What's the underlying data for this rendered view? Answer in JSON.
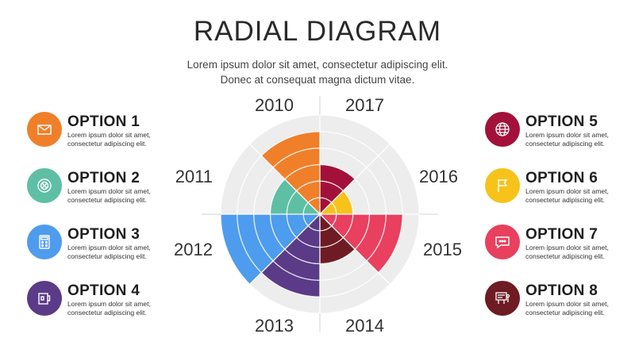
{
  "title": "RADIAL DIAGRAM",
  "subtitle": {
    "line1": "Lorem ipsum dolor sit amet, consectetur adipiscing elit.",
    "line2": "Donec at consequat magna dictum vitae."
  },
  "options": [
    {
      "label": "OPTION 1",
      "desc1": "Lorem ipsum dolor sit amet,",
      "desc2": "consectetur adipiscing elit.",
      "color": "#F07F2A",
      "icon": "envelope-icon"
    },
    {
      "label": "OPTION 2",
      "desc1": "Lorem ipsum dolor sit amet,",
      "desc2": "consectetur adipiscing elit.",
      "color": "#5EBFA5",
      "icon": "target-icon"
    },
    {
      "label": "OPTION 3",
      "desc1": "Lorem ipsum dolor sit amet,",
      "desc2": "consectetur adipiscing elit.",
      "color": "#4E9CEE",
      "icon": "calculator-icon"
    },
    {
      "label": "OPTION 4",
      "desc1": "Lorem ipsum dolor sit amet,",
      "desc2": "consectetur adipiscing elit.",
      "color": "#5B3B87",
      "icon": "mug-icon"
    },
    {
      "label": "OPTION 5",
      "desc1": "Lorem ipsum dolor sit amet,",
      "desc2": "consectetur adipiscing elit.",
      "color": "#A3113A",
      "icon": "globe-icon"
    },
    {
      "label": "OPTION 6",
      "desc1": "Lorem ipsum dolor sit amet,",
      "desc2": "consectetur adipiscing elit.",
      "color": "#F7C21A",
      "icon": "flag-icon"
    },
    {
      "label": "OPTION 7",
      "desc1": "Lorem ipsum dolor sit amet,",
      "desc2": "consectetur adipiscing elit.",
      "color": "#E8405E",
      "icon": "chat-bubble-icon"
    },
    {
      "label": "OPTION 8",
      "desc1": "Lorem ipsum dolor sit amet,",
      "desc2": "consectetur adipiscing elit.",
      "color": "#6E1B24",
      "icon": "presentation-board-icon"
    }
  ],
  "years": [
    "2017",
    "2016",
    "2015",
    "2014",
    "2013",
    "2012",
    "2011",
    "2010"
  ],
  "segments": [
    {
      "option": "OPTION 5",
      "color": "#A3113A",
      "level": 3
    },
    {
      "option": "OPTION 6",
      "color": "#F7C21A",
      "level": 2
    },
    {
      "option": "OPTION 7",
      "color": "#E8405E",
      "level": 5
    },
    {
      "option": "OPTION 8",
      "color": "#6E1B24",
      "level": 3
    },
    {
      "option": "OPTION 4",
      "color": "#5B3B87",
      "level": 5
    },
    {
      "option": "OPTION 3",
      "color": "#4E9CEE",
      "level": 6
    },
    {
      "option": "OPTION 2",
      "color": "#5EBFA5",
      "level": 3
    },
    {
      "option": "OPTION 1",
      "color": "#F07F2A",
      "level": 5
    }
  ],
  "max_level": 6,
  "background_color": "#EDEDED"
}
